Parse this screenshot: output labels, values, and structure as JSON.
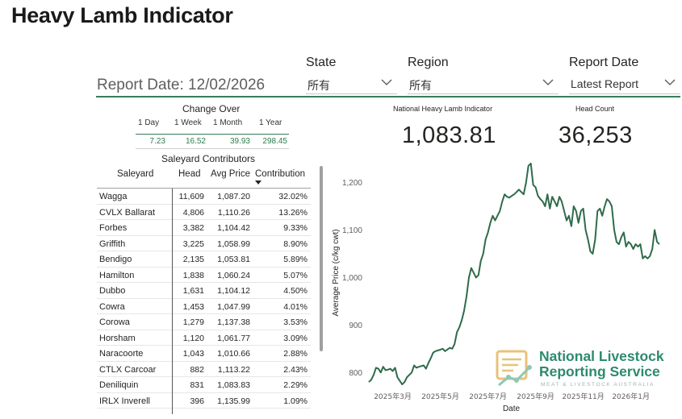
{
  "title": "Heavy Lamb Indicator",
  "report_date_text": "Report Date: 12/02/2026",
  "slicers": [
    {
      "label": "State",
      "value": "所有"
    },
    {
      "label": "Region",
      "value": "所有"
    },
    {
      "label": "Report Date",
      "value": "Latest Report"
    }
  ],
  "change_over": {
    "title": "Change Over",
    "headers": [
      "1 Day",
      "1 Week",
      "1 Month",
      "1 Year"
    ],
    "values": [
      "7.23",
      "16.52",
      "39.93",
      "298.45"
    ]
  },
  "kpis": {
    "indicator_label": "National Heavy Lamb Indicator",
    "indicator_value": "1,083.81",
    "headcount_label": "Head Count",
    "headcount_value": "36,253"
  },
  "saleyard": {
    "title": "Saleyard Contributors",
    "columns": [
      "Saleyard",
      "Head",
      "Avg Price",
      "Contribution"
    ],
    "rows": [
      {
        "name": "Wagga",
        "head": "11,609",
        "avg": "1,087.20",
        "contrib": "32.02%"
      },
      {
        "name": "CVLX Ballarat",
        "head": "4,806",
        "avg": "1,110.26",
        "contrib": "13.26%"
      },
      {
        "name": "Forbes",
        "head": "3,382",
        "avg": "1,104.42",
        "contrib": "9.33%"
      },
      {
        "name": "Griffith",
        "head": "3,225",
        "avg": "1,058.99",
        "contrib": "8.90%"
      },
      {
        "name": "Bendigo",
        "head": "2,135",
        "avg": "1,053.81",
        "contrib": "5.89%"
      },
      {
        "name": "Hamilton",
        "head": "1,838",
        "avg": "1,060.24",
        "contrib": "5.07%"
      },
      {
        "name": "Dubbo",
        "head": "1,631",
        "avg": "1,104.12",
        "contrib": "4.50%"
      },
      {
        "name": "Cowra",
        "head": "1,453",
        "avg": "1,047.99",
        "contrib": "4.01%"
      },
      {
        "name": "Corowa",
        "head": "1,279",
        "avg": "1,137.38",
        "contrib": "3.53%"
      },
      {
        "name": "Horsham",
        "head": "1,120",
        "avg": "1,061.77",
        "contrib": "3.09%"
      },
      {
        "name": "Naracoorte",
        "head": "1,043",
        "avg": "1,010.66",
        "contrib": "2.88%"
      },
      {
        "name": "CTLX Carcoar",
        "head": "882",
        "avg": "1,113.22",
        "contrib": "2.43%"
      },
      {
        "name": "Deniliquin",
        "head": "831",
        "avg": "1,083.83",
        "contrib": "2.29%"
      },
      {
        "name": "IRLX Inverell",
        "head": "396",
        "avg": "1,135.99",
        "contrib": "1.09%"
      }
    ]
  },
  "logo": {
    "line1": "National Livestock",
    "line2": "Reporting Service",
    "line3": "MEAT & LIVESTOCK AUSTRALIA"
  },
  "chart_data": {
    "type": "line",
    "xlabel": "Date",
    "ylabel": "Average Price (c/kg cwt)",
    "ylim": [
      770,
      1250
    ],
    "yticks": [
      800,
      900,
      1000,
      1100,
      1200
    ],
    "ytick_labels": [
      "800",
      "900",
      "1,000",
      "1,100",
      "1,200"
    ],
    "xlim": [
      0,
      12.3
    ],
    "xticks": [
      1,
      3,
      5,
      7,
      9,
      11
    ],
    "xtick_labels": [
      "2025年3月",
      "2025年5月",
      "2025年7月",
      "2025年9月",
      "2025年11月",
      "2026年1月"
    ],
    "grid": false,
    "color": "#2f6b4a",
    "series": [
      {
        "x": [
          0.0,
          0.1,
          0.2,
          0.3,
          0.4,
          0.5,
          0.6,
          0.7,
          0.8,
          0.9,
          1.0,
          1.1,
          1.2,
          1.4,
          1.5,
          1.6,
          1.8,
          1.9,
          2.0,
          2.1,
          2.3,
          2.4,
          2.5,
          2.6,
          2.7,
          2.8,
          3.0,
          3.1,
          3.2,
          3.4,
          3.5,
          3.6,
          3.7,
          3.8,
          3.9,
          4.0,
          4.1,
          4.2,
          4.3,
          4.5,
          4.6,
          4.7,
          4.8,
          4.9,
          5.0,
          5.1,
          5.2,
          5.3,
          5.5,
          5.6,
          5.7,
          5.8,
          5.9,
          6.0,
          6.1,
          6.2,
          6.3,
          6.5,
          6.6,
          6.7,
          6.8,
          6.9,
          7.0,
          7.1,
          7.2,
          7.3,
          7.4,
          7.5,
          7.6,
          7.7,
          7.8,
          7.9,
          8.0,
          8.1,
          8.2,
          8.3,
          8.4,
          8.5,
          8.6,
          8.7,
          8.8,
          8.9,
          9.0,
          9.1,
          9.2,
          9.3,
          9.4,
          9.5,
          9.6,
          9.7,
          9.8,
          9.9,
          10.0,
          10.1,
          10.2,
          10.3,
          10.4,
          10.5,
          10.6,
          10.7,
          10.8,
          10.9,
          11.0,
          11.1,
          11.2,
          11.3,
          11.4,
          11.5,
          11.6,
          11.7,
          11.8,
          11.9,
          12.0,
          12.1,
          12.2
        ],
        "values": [
          780,
          785,
          795,
          810,
          808,
          800,
          812,
          805,
          806,
          808,
          803,
          810,
          790,
          775,
          780,
          790,
          800,
          815,
          810,
          812,
          815,
          808,
          820,
          830,
          842,
          845,
          848,
          850,
          845,
          852,
          850,
          860,
          885,
          895,
          910,
          930,
          960,
          1000,
          1020,
          1000,
          1005,
          1035,
          1050,
          1080,
          1095,
          1115,
          1130,
          1120,
          1140,
          1160,
          1175,
          1170,
          1168,
          1172,
          1175,
          1180,
          1185,
          1175,
          1200,
          1235,
          1240,
          1195,
          1190,
          1172,
          1165,
          1160,
          1150,
          1175,
          1145,
          1170,
          1160,
          1150,
          1170,
          1160,
          1140,
          1120,
          1130,
          1108,
          1150,
          1140,
          1115,
          1140,
          1145,
          1100,
          1080,
          1055,
          1050,
          1080,
          1140,
          1145,
          1130,
          1150,
          1165,
          1160,
          1150,
          1100,
          1075,
          1070,
          1085,
          1095,
          1065,
          1075,
          1070,
          1060,
          1070,
          1065,
          1070,
          1040,
          1045,
          1040,
          1045,
          1060,
          1100,
          1075,
          1070
        ]
      }
    ]
  }
}
